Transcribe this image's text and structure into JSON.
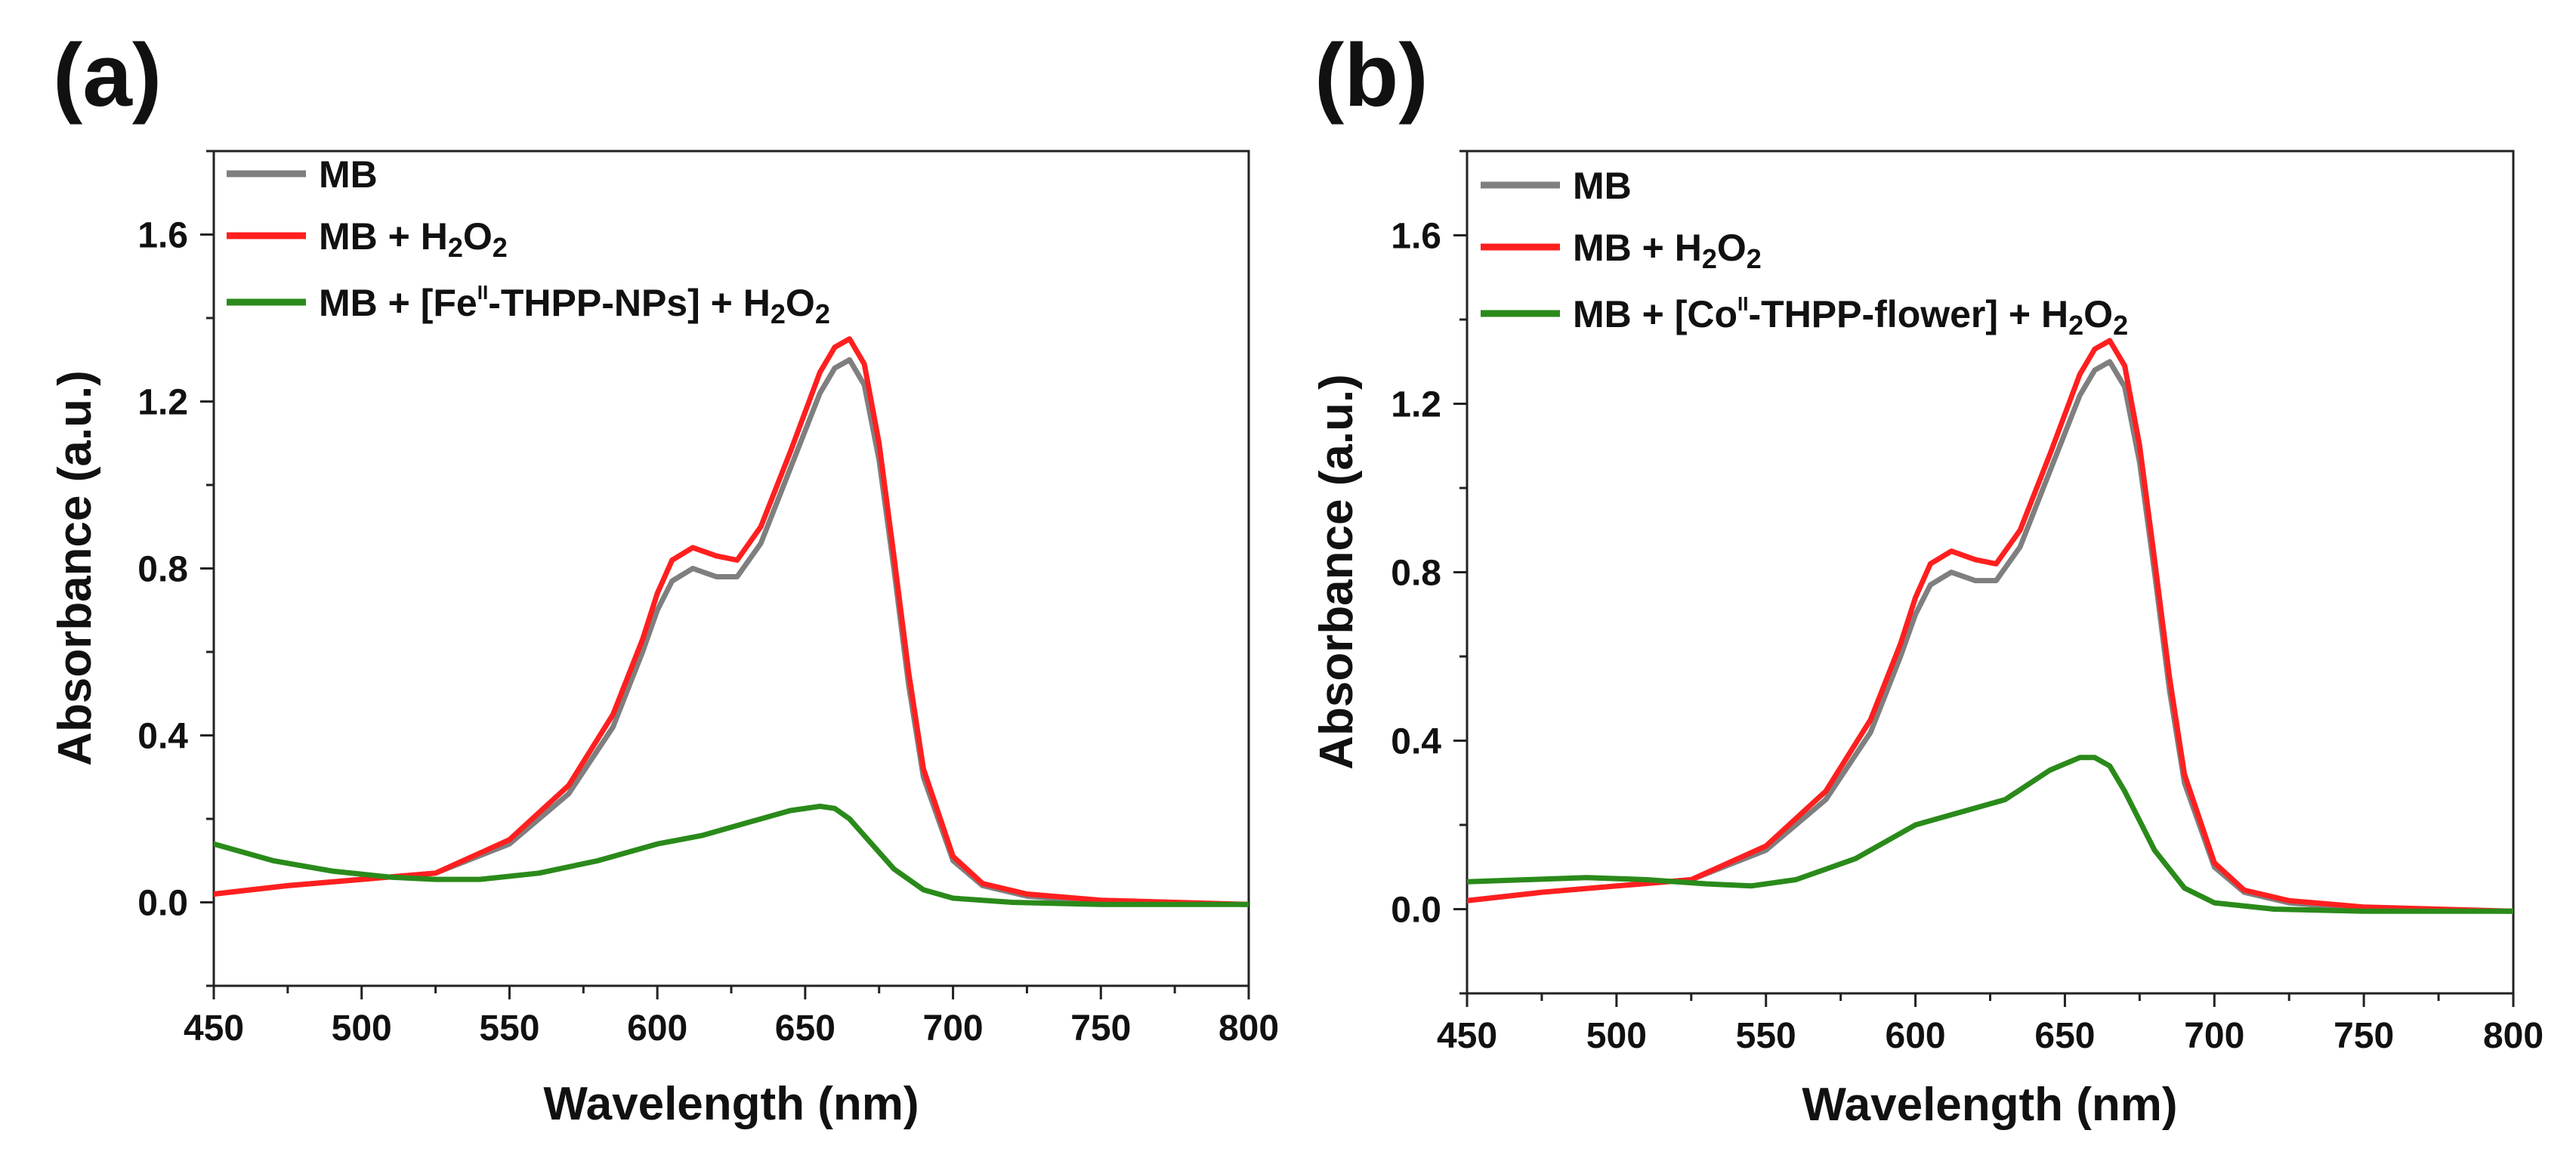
{
  "panel_labels": [
    "(a)",
    "(b)"
  ],
  "chart_data": [
    {
      "type": "line",
      "panel": "(a)",
      "xlabel": "Wavelength (nm)",
      "ylabel": "Absorbance (a.u.)",
      "xlim": [
        450,
        800
      ],
      "ylim": [
        -0.2,
        1.8
      ],
      "x_ticks": [
        450,
        500,
        550,
        600,
        650,
        700,
        750,
        800
      ],
      "x_tick_labels": [
        "450",
        "500",
        "550",
        "600",
        "650",
        "700",
        "750",
        "800"
      ],
      "y_ticks": [
        0.0,
        0.4,
        0.8,
        1.2,
        1.6
      ],
      "y_tick_labels": [
        "0.0",
        "0.4",
        "0.8",
        "1.2",
        "1.6"
      ],
      "legend_position": "top-left",
      "series": [
        {
          "name": "MB",
          "legend": {
            "main": "MB"
          },
          "color": "#7f7f7f",
          "x": [
            450,
            475,
            500,
            525,
            550,
            570,
            585,
            595,
            600,
            605,
            612,
            620,
            627,
            635,
            645,
            655,
            660,
            665,
            670,
            675,
            680,
            685,
            690,
            700,
            710,
            725,
            750,
            800
          ],
          "y": [
            0.02,
            0.04,
            0.055,
            0.07,
            0.14,
            0.26,
            0.42,
            0.6,
            0.7,
            0.77,
            0.8,
            0.78,
            0.78,
            0.86,
            1.04,
            1.22,
            1.28,
            1.3,
            1.24,
            1.06,
            0.8,
            0.52,
            0.3,
            0.1,
            0.04,
            0.015,
            0.0,
            -0.005
          ]
        },
        {
          "name": "MB + H2O2",
          "legend": {
            "main": "MB + H",
            "sub1": "2",
            "mid": "O",
            "sub2": "2"
          },
          "color": "#ff1f1f",
          "x": [
            450,
            475,
            500,
            525,
            550,
            570,
            585,
            595,
            600,
            605,
            612,
            620,
            627,
            635,
            645,
            655,
            660,
            665,
            670,
            675,
            680,
            685,
            690,
            700,
            710,
            725,
            750,
            800
          ],
          "y": [
            0.02,
            0.04,
            0.055,
            0.07,
            0.15,
            0.28,
            0.45,
            0.63,
            0.74,
            0.82,
            0.85,
            0.83,
            0.82,
            0.9,
            1.08,
            1.27,
            1.33,
            1.35,
            1.29,
            1.1,
            0.83,
            0.55,
            0.32,
            0.11,
            0.045,
            0.02,
            0.005,
            -0.005
          ]
        },
        {
          "name": "MB + [FeII-THPP-NPs] + H2O2",
          "legend": {
            "pre": "MB + [Fe",
            "sup": "II",
            "post": "-THPP-NPs] + H",
            "sub1": "2",
            "mid": "O",
            "sub2": "2"
          },
          "color": "#2a8a1a",
          "x": [
            450,
            470,
            490,
            510,
            525,
            540,
            560,
            580,
            600,
            615,
            630,
            645,
            655,
            660,
            665,
            670,
            680,
            690,
            700,
            720,
            750,
            800
          ],
          "y": [
            0.14,
            0.1,
            0.075,
            0.06,
            0.055,
            0.055,
            0.07,
            0.1,
            0.14,
            0.16,
            0.19,
            0.22,
            0.23,
            0.225,
            0.2,
            0.16,
            0.08,
            0.03,
            0.01,
            0.0,
            -0.005,
            -0.005
          ]
        }
      ]
    },
    {
      "type": "line",
      "panel": "(b)",
      "xlabel": "Wavelength (nm)",
      "ylabel": "Absorbance (a.u.)",
      "xlim": [
        450,
        800
      ],
      "ylim": [
        -0.2,
        1.8
      ],
      "x_ticks": [
        450,
        500,
        550,
        600,
        650,
        700,
        750,
        800
      ],
      "x_tick_labels": [
        "450",
        "500",
        "550",
        "600",
        "650",
        "700",
        "750",
        "800"
      ],
      "y_ticks": [
        0.0,
        0.4,
        0.8,
        1.2,
        1.6
      ],
      "y_tick_labels": [
        "0.0",
        "0.4",
        "0.8",
        "1.2",
        "1.6"
      ],
      "legend_position": "top-left",
      "series": [
        {
          "name": "MB",
          "legend": {
            "main": "MB"
          },
          "color": "#7f7f7f",
          "x": [
            450,
            475,
            500,
            525,
            550,
            570,
            585,
            595,
            600,
            605,
            612,
            620,
            627,
            635,
            645,
            655,
            660,
            665,
            670,
            675,
            680,
            685,
            690,
            700,
            710,
            725,
            750,
            800
          ],
          "y": [
            0.02,
            0.04,
            0.055,
            0.07,
            0.14,
            0.26,
            0.42,
            0.6,
            0.7,
            0.77,
            0.8,
            0.78,
            0.78,
            0.86,
            1.04,
            1.22,
            1.28,
            1.3,
            1.24,
            1.06,
            0.8,
            0.52,
            0.3,
            0.1,
            0.04,
            0.015,
            0.0,
            -0.005
          ]
        },
        {
          "name": "MB + H2O2",
          "legend": {
            "main": "MB + H",
            "sub1": "2",
            "mid": "O",
            "sub2": "2"
          },
          "color": "#ff1f1f",
          "x": [
            450,
            475,
            500,
            525,
            550,
            570,
            585,
            595,
            600,
            605,
            612,
            620,
            627,
            635,
            645,
            655,
            660,
            665,
            670,
            675,
            680,
            685,
            690,
            700,
            710,
            725,
            750,
            800
          ],
          "y": [
            0.02,
            0.04,
            0.055,
            0.07,
            0.15,
            0.28,
            0.45,
            0.63,
            0.74,
            0.82,
            0.85,
            0.83,
            0.82,
            0.9,
            1.08,
            1.27,
            1.33,
            1.35,
            1.29,
            1.1,
            0.83,
            0.55,
            0.32,
            0.11,
            0.045,
            0.02,
            0.005,
            -0.005
          ]
        },
        {
          "name": "MB + [CoII-THPP-flower] + H2O2",
          "legend": {
            "pre": "MB + [Co",
            "sup": "II",
            "post": "-THPP-flower] + H",
            "sub1": "2",
            "mid": "O",
            "sub2": "2"
          },
          "color": "#2a8a1a",
          "x": [
            450,
            470,
            490,
            510,
            530,
            545,
            560,
            580,
            600,
            615,
            630,
            645,
            655,
            660,
            665,
            670,
            680,
            690,
            700,
            720,
            750,
            800
          ],
          "y": [
            0.065,
            0.07,
            0.075,
            0.07,
            0.06,
            0.055,
            0.07,
            0.12,
            0.2,
            0.23,
            0.26,
            0.33,
            0.36,
            0.36,
            0.34,
            0.28,
            0.14,
            0.05,
            0.015,
            0.0,
            -0.005,
            -0.005
          ]
        }
      ]
    }
  ]
}
